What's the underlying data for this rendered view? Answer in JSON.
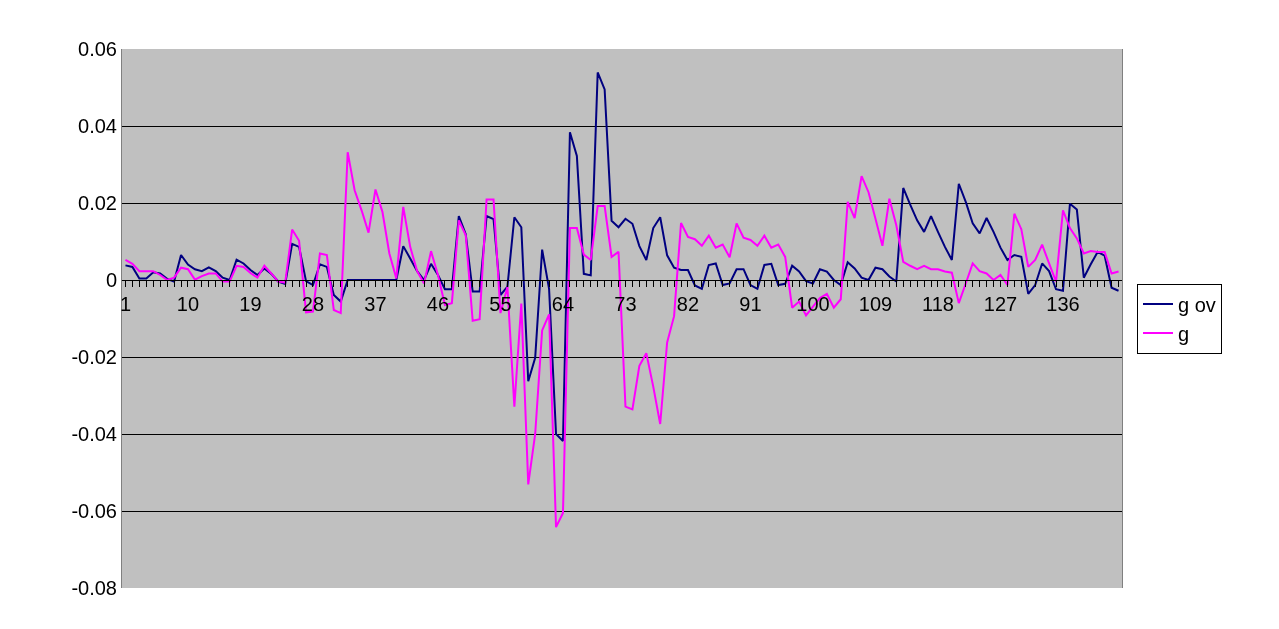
{
  "chart_data": {
    "type": "line",
    "categories": [
      "1",
      null,
      null,
      null,
      null,
      null,
      null,
      null,
      null,
      "10",
      null,
      null,
      null,
      null,
      null,
      null,
      null,
      null,
      "19",
      null,
      null,
      null,
      null,
      null,
      null,
      null,
      null,
      "28",
      null,
      null,
      null,
      null,
      null,
      null,
      null,
      null,
      "37",
      null,
      null,
      null,
      null,
      null,
      null,
      null,
      null,
      "46",
      null,
      null,
      null,
      null,
      null,
      null,
      null,
      null,
      "55",
      null,
      null,
      null,
      null,
      null,
      null,
      null,
      null,
      "64",
      null,
      null,
      null,
      null,
      null,
      null,
      null,
      null,
      "73",
      null,
      null,
      null,
      null,
      null,
      null,
      null,
      null,
      "82",
      null,
      null,
      null,
      null,
      null,
      null,
      null,
      null,
      "91",
      null,
      null,
      null,
      null,
      null,
      null,
      null,
      null,
      "100",
      null,
      null,
      null,
      null,
      null,
      null,
      null,
      null,
      "109",
      null,
      null,
      null,
      null,
      null,
      null,
      null,
      null,
      "118",
      null,
      null,
      null,
      null,
      null,
      null,
      null,
      null,
      "127",
      null,
      null,
      null,
      null,
      null,
      null,
      null,
      null,
      "136",
      null,
      null,
      null,
      null,
      null,
      null,
      null,
      null
    ],
    "series": [
      {
        "name": "g ov",
        "color": "#000080",
        "values": [
          0.0038,
          0.0034,
          0.0004,
          0.0004,
          0.002,
          0.0017,
          0.0003,
          -0.0004,
          0.0065,
          0.004,
          0.0028,
          0.0023,
          0.0033,
          0.0023,
          0.0006,
          0,
          0.0053,
          0.0043,
          0.0026,
          0.0013,
          0.003,
          0.0016,
          -0.0004,
          -0.001,
          0.0094,
          0.0086,
          -0.0003,
          -0.0013,
          0.0041,
          0.0034,
          -0.0039,
          -0.0056,
          0,
          0,
          0,
          0,
          0,
          0,
          0,
          0,
          0.0088,
          0.0056,
          0.0023,
          0,
          0.0042,
          0.0013,
          -0.0024,
          -0.0024,
          0.0166,
          0.0119,
          -0.003,
          -0.003,
          0.0166,
          0.0158,
          -0.0039,
          -0.0017,
          0.0163,
          0.0137,
          -0.0263,
          -0.0202,
          0.0079,
          -0.0023,
          -0.04,
          -0.0418,
          0.0384,
          0.0322,
          0.0016,
          0.0012,
          0.0539,
          0.0495,
          0.0154,
          0.0137,
          0.0159,
          0.0146,
          0.0088,
          0.0052,
          0.0135,
          0.0163,
          0.0064,
          0.0032,
          0.0026,
          0.0026,
          -0.0014,
          -0.0023,
          0.0039,
          0.0043,
          -0.0013,
          -0.0009,
          0.0028,
          0.0028,
          -0.0013,
          -0.0023,
          0.0039,
          0.0042,
          -0.0013,
          -0.001,
          0.0037,
          0.0022,
          -0.0003,
          -0.0009,
          0.0028,
          0.0022,
          0,
          -0.0013,
          0.0046,
          0.003,
          0.0006,
          0,
          0.0032,
          0.0028,
          0.0009,
          -0.0004,
          0.0239,
          0.0196,
          0.0155,
          0.0125,
          0.0166,
          0.0125,
          0.0086,
          0.0052,
          0.025,
          0.0203,
          0.0147,
          0.0121,
          0.0161,
          0.0125,
          0.0084,
          0.0052,
          0.0065,
          0.006,
          -0.0036,
          -0.0013,
          0.0043,
          0.0023,
          -0.0024,
          -0.0028,
          0.0198,
          0.0183,
          0.0006,
          0.0041,
          0.0073,
          0.0063,
          -0.002,
          -0.0028
        ]
      },
      {
        "name": "g",
        "color": "#ff00ff",
        "values": [
          0.0052,
          0.0042,
          0.0023,
          0.0023,
          0.0023,
          0.0013,
          0,
          0.0006,
          0.0032,
          0.0028,
          0.0001,
          0.001,
          0.0017,
          0.0017,
          -0.0004,
          -0.0004,
          0.0037,
          0.0034,
          0.0018,
          0.0006,
          0.0037,
          0.0017,
          -0.0004,
          -0.0007,
          0.0131,
          0.0102,
          -0.0084,
          -0.0082,
          0.0069,
          0.0065,
          -0.0078,
          -0.0086,
          0.0332,
          0.0233,
          0.0181,
          0.0123,
          0.0235,
          0.0177,
          0.0069,
          0.0004,
          0.019,
          0.0086,
          0.0023,
          -0.0009,
          0.0075,
          0.0013,
          -0.0065,
          -0.006,
          0.0155,
          0.0116,
          -0.0106,
          -0.0102,
          0.0209,
          0.0209,
          -0.0086,
          -0.0018,
          -0.0329,
          -0.0061,
          -0.0531,
          -0.04,
          -0.0131,
          -0.0089,
          -0.0642,
          -0.0605,
          0.0135,
          0.0135,
          0.0066,
          0.0052,
          0.0192,
          0.0192,
          0.006,
          0.0073,
          -0.0329,
          -0.0336,
          -0.0223,
          -0.019,
          -0.0277,
          -0.0374,
          -0.0162,
          -0.0094,
          0.0148,
          0.0112,
          0.0106,
          0.0089,
          0.0115,
          0.0084,
          0.0092,
          0.0059,
          0.0147,
          0.011,
          0.0104,
          0.0089,
          0.0115,
          0.0084,
          0.0092,
          0.006,
          -0.0072,
          -0.0056,
          -0.0092,
          -0.0069,
          -0.0047,
          -0.0036,
          -0.0072,
          -0.005,
          0.0203,
          0.0161,
          0.027,
          0.0228,
          0.0159,
          0.0089,
          0.0211,
          0.0142,
          0.0047,
          0.0037,
          0.0028,
          0.0037,
          0.0028,
          0.0028,
          0.0022,
          0.0019,
          -0.006,
          -0.0009,
          0.0043,
          0.0023,
          0.0017,
          0,
          0.0013,
          -0.0013,
          0.0172,
          0.0132,
          0.0034,
          0.0052,
          0.0092,
          0.0043,
          -0.0004,
          0.0181,
          0.0135,
          0.0108,
          0.0069,
          0.0075,
          0.0073,
          0.0073,
          0.0017,
          0.0022
        ]
      }
    ],
    "ylim": [
      -0.08,
      0.06
    ],
    "yticks": [
      {
        "value": -0.08,
        "label": "-0.08"
      },
      {
        "value": -0.06,
        "label": "-0.06"
      },
      {
        "value": -0.04,
        "label": "-0.04"
      },
      {
        "value": -0.02,
        "label": "-0.02"
      },
      0,
      {
        "value": 0.02,
        "label": "0.02"
      },
      {
        "value": 0.04,
        "label": "0.04"
      },
      {
        "value": 0.06,
        "label": "0.06"
      }
    ],
    "grid": "y",
    "legend": "right",
    "marker": "none",
    "line_style": "solid"
  }
}
